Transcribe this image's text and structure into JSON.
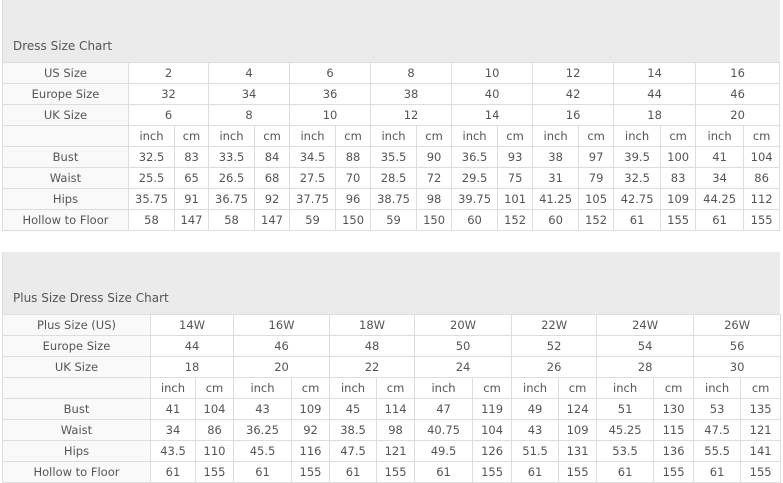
{
  "charts": [
    {
      "title": "Dress Size Chart",
      "size_rows": [
        {
          "label": "US Size",
          "values": [
            "2",
            "4",
            "6",
            "8",
            "10",
            "12",
            "14",
            "16"
          ]
        },
        {
          "label": "Europe Size",
          "values": [
            "32",
            "34",
            "36",
            "38",
            "40",
            "42",
            "44",
            "46"
          ]
        },
        {
          "label": "UK Size",
          "values": [
            "6",
            "8",
            "10",
            "12",
            "14",
            "16",
            "18",
            "20"
          ]
        }
      ],
      "unit_labels": [
        "inch",
        "cm"
      ],
      "measure_rows": [
        {
          "label": "Bust",
          "values": [
            "32.5",
            "83",
            "33.5",
            "84",
            "34.5",
            "88",
            "35.5",
            "90",
            "36.5",
            "93",
            "38",
            "97",
            "39.5",
            "100",
            "41",
            "104"
          ]
        },
        {
          "label": "Waist",
          "values": [
            "25.5",
            "65",
            "26.5",
            "68",
            "27.5",
            "70",
            "28.5",
            "72",
            "29.5",
            "75",
            "31",
            "79",
            "32.5",
            "83",
            "34",
            "86"
          ]
        },
        {
          "label": "Hips",
          "values": [
            "35.75",
            "91",
            "36.75",
            "92",
            "37.75",
            "96",
            "38.75",
            "98",
            "39.75",
            "101",
            "41.25",
            "105",
            "42.75",
            "109",
            "44.25",
            "112"
          ]
        },
        {
          "label": "Hollow to Floor",
          "values": [
            "58",
            "147",
            "58",
            "147",
            "59",
            "150",
            "59",
            "150",
            "60",
            "152",
            "60",
            "152",
            "61",
            "155",
            "61",
            "155"
          ]
        }
      ]
    },
    {
      "title": "Plus Size Dress Size Chart",
      "size_rows": [
        {
          "label": "Plus Size (US)",
          "values": [
            "14W",
            "16W",
            "18W",
            "20W",
            "22W",
            "24W",
            "26W"
          ]
        },
        {
          "label": "Europe Size",
          "values": [
            "44",
            "46",
            "48",
            "50",
            "52",
            "54",
            "56"
          ]
        },
        {
          "label": "UK Size",
          "values": [
            "18",
            "20",
            "22",
            "24",
            "26",
            "28",
            "30"
          ]
        }
      ],
      "unit_labels": [
        "inch",
        "cm"
      ],
      "measure_rows": [
        {
          "label": "Bust",
          "values": [
            "41",
            "104",
            "43",
            "109",
            "45",
            "114",
            "47",
            "119",
            "49",
            "124",
            "51",
            "130",
            "53",
            "135"
          ]
        },
        {
          "label": "Waist",
          "values": [
            "34",
            "86",
            "36.25",
            "92",
            "38.5",
            "98",
            "40.75",
            "104",
            "43",
            "109",
            "45.25",
            "115",
            "47.5",
            "121"
          ]
        },
        {
          "label": "Hips",
          "values": [
            "43.5",
            "110",
            "45.5",
            "116",
            "47.5",
            "121",
            "49.5",
            "126",
            "51.5",
            "131",
            "53.5",
            "136",
            "55.5",
            "141"
          ]
        },
        {
          "label": "Hollow to Floor",
          "values": [
            "61",
            "155",
            "61",
            "155",
            "61",
            "155",
            "61",
            "155",
            "61",
            "155",
            "61",
            "155",
            "61",
            "155"
          ]
        }
      ]
    }
  ]
}
